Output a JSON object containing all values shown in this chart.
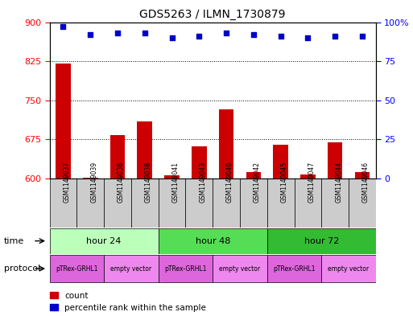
{
  "title": "GDS5263 / ILMN_1730879",
  "samples": [
    "GSM1149037",
    "GSM1149039",
    "GSM1149036",
    "GSM1149038",
    "GSM1149041",
    "GSM1149043",
    "GSM1149040",
    "GSM1149042",
    "GSM1149045",
    "GSM1149047",
    "GSM1149044",
    "GSM1149046"
  ],
  "counts": [
    820,
    602,
    683,
    710,
    607,
    662,
    733,
    613,
    665,
    608,
    670,
    612
  ],
  "percentiles": [
    97,
    92,
    93,
    93,
    90,
    91,
    93,
    92,
    91,
    90,
    91,
    91
  ],
  "ylim_left": [
    600,
    900
  ],
  "yticks_left": [
    600,
    675,
    750,
    825,
    900
  ],
  "ylim_right": [
    0,
    100
  ],
  "yticks_right": [
    0,
    25,
    50,
    75,
    100
  ],
  "bar_color": "#cc0000",
  "dot_color": "#0000cc",
  "bar_width": 0.55,
  "time_groups": [
    {
      "label": "hour 24",
      "start": 0,
      "end": 3,
      "color": "#bbffbb"
    },
    {
      "label": "hour 48",
      "start": 4,
      "end": 7,
      "color": "#55dd55"
    },
    {
      "label": "hour 72",
      "start": 8,
      "end": 11,
      "color": "#33bb33"
    }
  ],
  "protocol_groups": [
    {
      "label": "pTRex-GRHL1",
      "start": 0,
      "end": 1,
      "color": "#dd66dd"
    },
    {
      "label": "empty vector",
      "start": 2,
      "end": 3,
      "color": "#ee88ee"
    },
    {
      "label": "pTRex-GRHL1",
      "start": 4,
      "end": 5,
      "color": "#dd66dd"
    },
    {
      "label": "empty vector",
      "start": 6,
      "end": 7,
      "color": "#ee88ee"
    },
    {
      "label": "pTRex-GRHL1",
      "start": 8,
      "end": 9,
      "color": "#dd66dd"
    },
    {
      "label": "empty vector",
      "start": 10,
      "end": 11,
      "color": "#ee88ee"
    }
  ],
  "legend_count_label": "count",
  "legend_percentile_label": "percentile rank within the sample",
  "time_label": "time",
  "protocol_label": "protocol",
  "tick_bg_color": "#cccccc"
}
